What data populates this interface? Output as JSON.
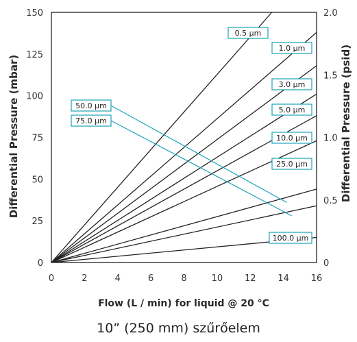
{
  "chart_data": {
    "type": "line",
    "xlabel": "Flow (L / min) for liquid @ 20 °C",
    "ylabel": "Differential Pressure (mbar)",
    "y2label": "Differential Pressure (psid)",
    "xlim": [
      0,
      16
    ],
    "ylim": [
      0,
      150
    ],
    "y2lim": [
      0,
      2.0
    ],
    "x_ticks": [
      "0",
      "2",
      "4",
      "6",
      "8",
      "10",
      "12",
      "14",
      "16"
    ],
    "y_ticks": [
      "0",
      "25",
      "50",
      "75",
      "100",
      "125",
      "150"
    ],
    "y2_ticks": [
      "0",
      "0.5",
      "1.0",
      "1.5",
      "2.0"
    ],
    "grid": false,
    "series_color": "#222222",
    "label_color": "#1aa3b6",
    "series": [
      {
        "name": "0.5 µm",
        "points": [
          [
            0,
            0
          ],
          [
            13.3,
            150
          ]
        ]
      },
      {
        "name": "1.0 µm",
        "points": [
          [
            0,
            0
          ],
          [
            16,
            138
          ]
        ]
      },
      {
        "name": "3.0 µm",
        "points": [
          [
            0,
            0
          ],
          [
            16,
            118
          ]
        ]
      },
      {
        "name": "5.0 µm",
        "points": [
          [
            0,
            0
          ],
          [
            16,
            101
          ]
        ]
      },
      {
        "name": "10.0 µm",
        "points": [
          [
            0,
            0
          ],
          [
            16,
            88
          ]
        ]
      },
      {
        "name": "25.0 µm",
        "points": [
          [
            0,
            0
          ],
          [
            16,
            73
          ]
        ]
      },
      {
        "name": "50.0 µm",
        "points": [
          [
            0,
            0
          ],
          [
            16,
            44
          ]
        ]
      },
      {
        "name": "75.0 µm",
        "points": [
          [
            0,
            0
          ],
          [
            16,
            34
          ]
        ]
      },
      {
        "name": "100.0 µm",
        "points": [
          [
            0,
            0
          ],
          [
            16,
            15
          ]
        ]
      }
    ]
  },
  "caption": "10” (250 mm) szűrőelem"
}
